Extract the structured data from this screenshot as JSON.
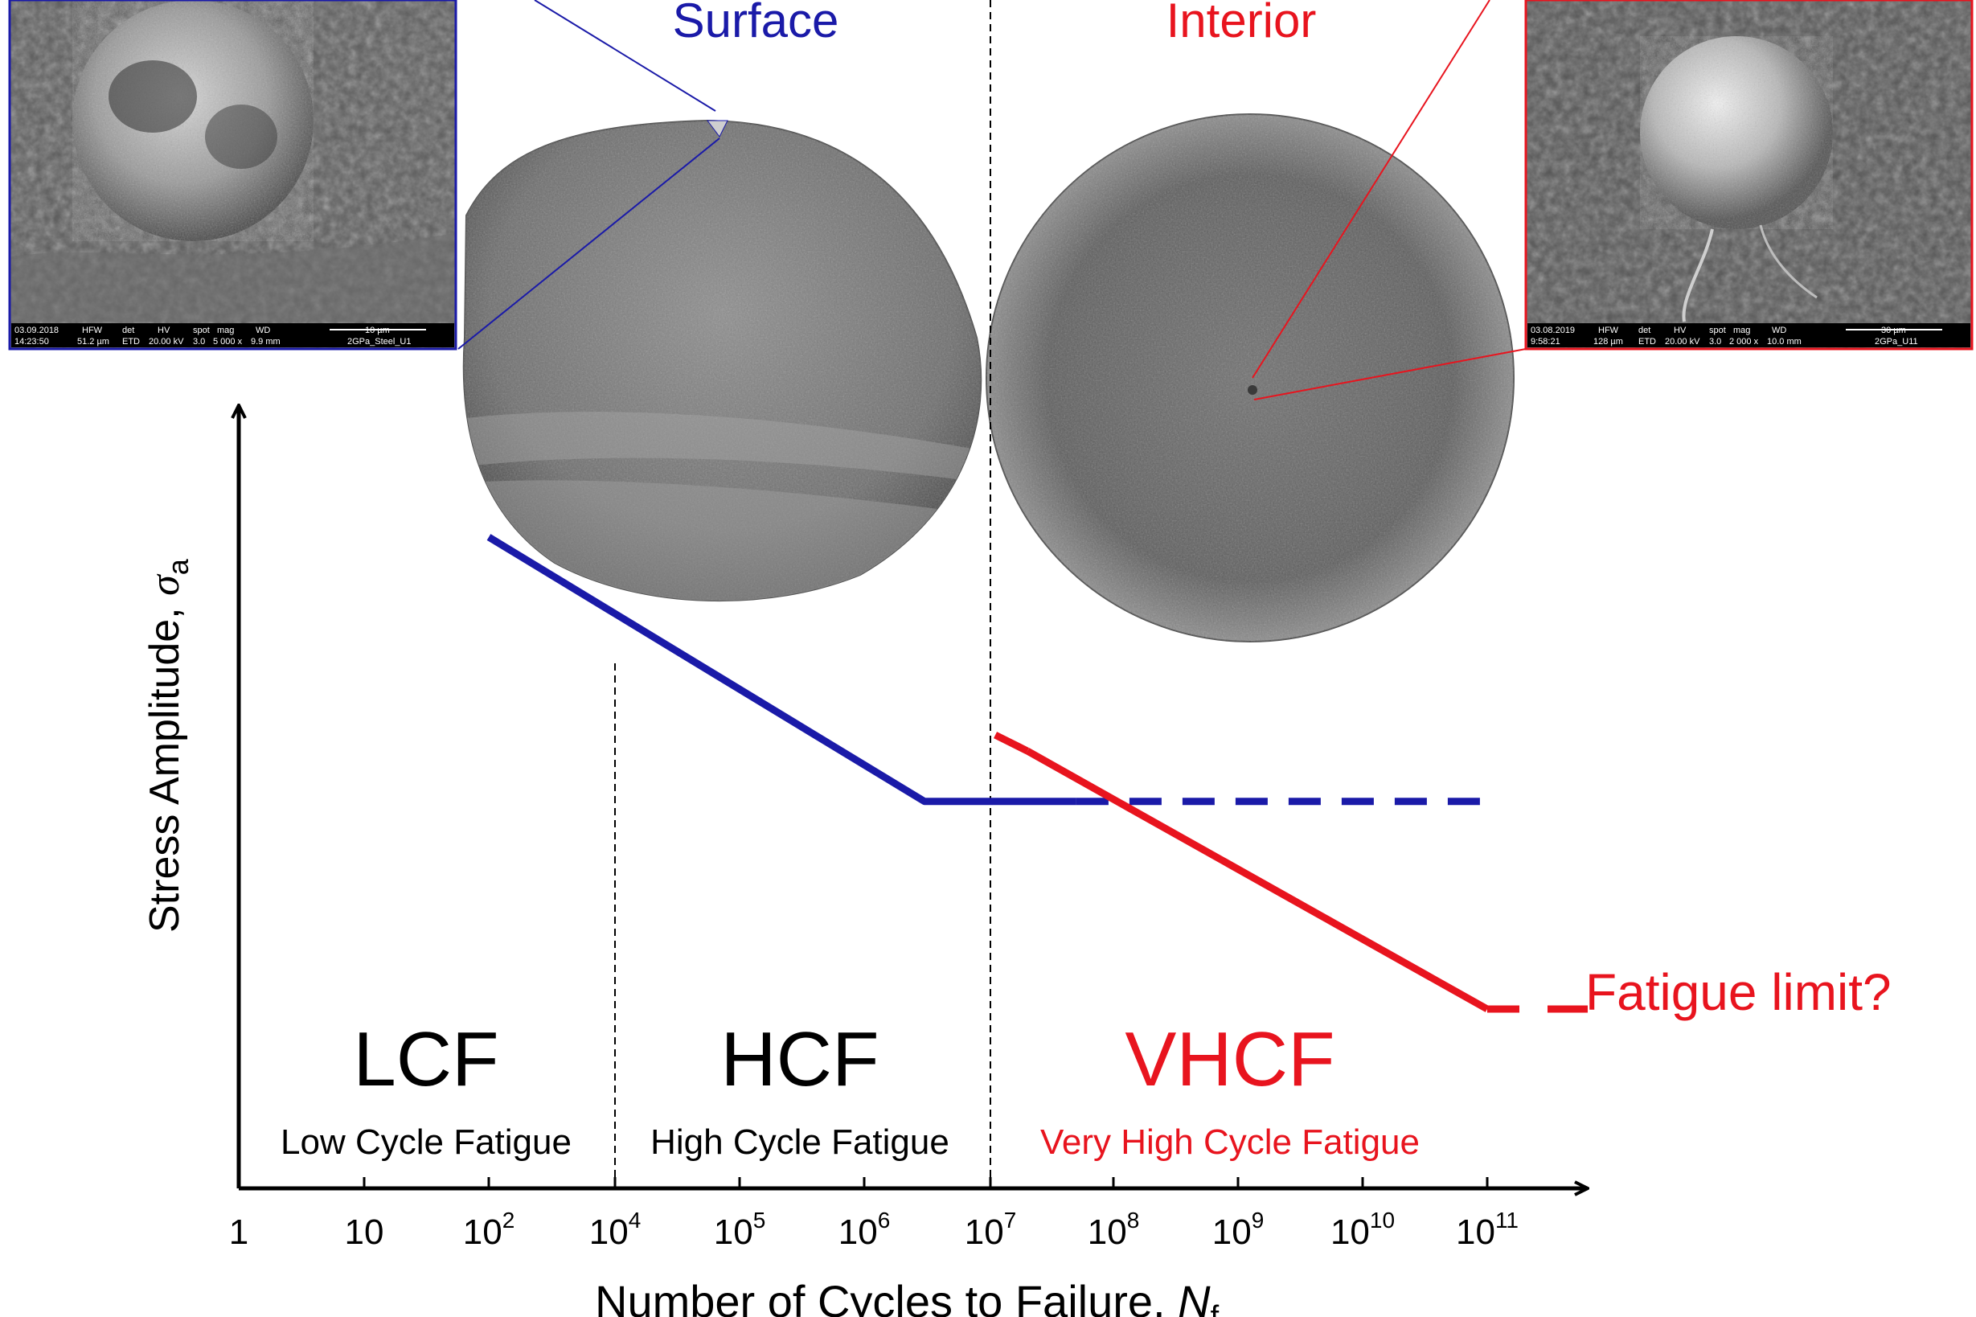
{
  "colors": {
    "surface": "#1a1aa8",
    "interior": "#e8141e",
    "axis": "#000000",
    "sem_bg": "#5c5c5c",
    "fracture_fill": "#7a7a7a"
  },
  "header": {
    "surface_label": "Surface",
    "interior_label": "Interior"
  },
  "y_axis": {
    "label_main": "Stress Amplitude, ",
    "label_symbol": "σ",
    "label_subscript": "a"
  },
  "x_axis": {
    "label_main": "Number of Cycles to Failure, ",
    "label_symbol": "N",
    "label_subscript": "f",
    "ticks": [
      {
        "base": "1",
        "exp": ""
      },
      {
        "base": "10",
        "exp": ""
      },
      {
        "base": "10",
        "exp": "2"
      },
      {
        "base": "10",
        "exp": "4"
      },
      {
        "base": "10",
        "exp": "5"
      },
      {
        "base": "10",
        "exp": "6"
      },
      {
        "base": "10",
        "exp": "7"
      },
      {
        "base": "10",
        "exp": "8"
      },
      {
        "base": "10",
        "exp": "9"
      },
      {
        "base": "10",
        "exp": "10"
      },
      {
        "base": "10",
        "exp": "11"
      }
    ]
  },
  "regions": [
    {
      "abbr": "LCF",
      "name": "Low Cycle Fatigue",
      "color": "#000000"
    },
    {
      "abbr": "HCF",
      "name": "High Cycle Fatigue",
      "color": "#000000"
    },
    {
      "abbr": "VHCF",
      "name": "Very High Cycle Fatigue",
      "color": "#e8141e"
    }
  ],
  "annotations": {
    "fatigue_limit": "Fatigue limit?"
  },
  "chart_data": {
    "type": "line",
    "xscale": "log",
    "x_tick_labels": [
      "1",
      "10",
      "10^2",
      "10^4",
      "10^5",
      "10^6",
      "10^7",
      "10^8",
      "10^9",
      "10^10",
      "10^11"
    ],
    "series": [
      {
        "points": [
          [
            100,
            1.0
          ],
          [
            3000000,
            0.58
          ],
          [
            100000000000,
            0.58
          ]
        ],
        "dashed_from_x": 50000000
      },
      {
        "points": [
          [
            20000000,
            0.66
          ],
          [
            800000000000,
            0.25
          ]
        ],
        "dashed_from_x": 800000000000
      }
    ]
  },
  "sem_left": {
    "meta_headers": [
      "03.09.2018",
      "HFW",
      "det",
      "HV",
      "spot",
      "mag",
      "WD"
    ],
    "meta_values": [
      "14:23:50",
      "51.2 µm",
      "ETD",
      "20.00 kV",
      "3.0",
      "5 000 x",
      "9.9 mm"
    ],
    "scale": "10 µm",
    "sample": "2GPa_Steel_U1"
  },
  "sem_right": {
    "meta_headers": [
      "03.08.2019",
      "HFW",
      "det",
      "HV",
      "spot",
      "mag",
      "WD"
    ],
    "meta_values": [
      "9:58:21",
      "128 µm",
      "ETD",
      "20.00 kV",
      "3.0",
      "2 000 x",
      "10.0 mm"
    ],
    "scale": "30 µm",
    "sample": "2GPa_U11"
  }
}
